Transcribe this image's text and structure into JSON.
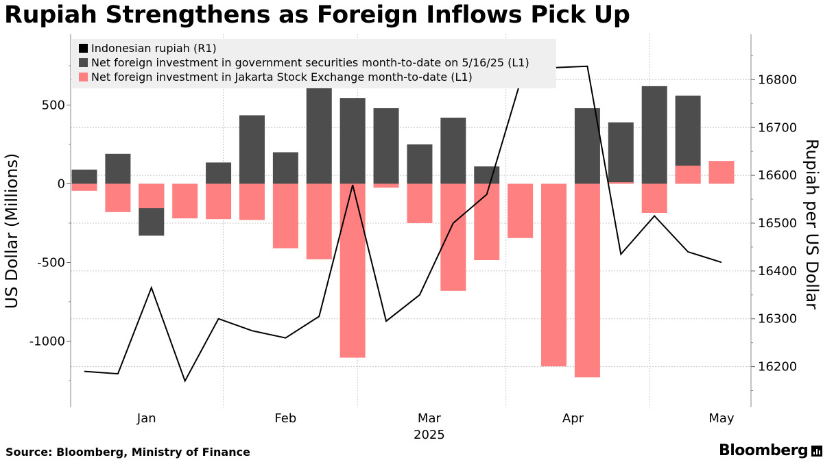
{
  "title": "Rupiah Strengthens as Foreign Inflows Pick Up",
  "source": "Source: Bloomberg, Ministry of Finance",
  "brand": "Bloomberg",
  "colors": {
    "rupiah": "#000000",
    "securities": "#4d4d4d",
    "stocks": "#ff8080",
    "legend_bg": "#efefef",
    "grid": "#c8c8c8"
  },
  "legend": [
    {
      "label": "Indonesian rupiah (R1)",
      "color": "#000000"
    },
    {
      "label": "Net foreign investment in government securities month-to-date on 5/16/25 (L1)",
      "color": "#4d4d4d"
    },
    {
      "label": "Net foreign investment in Jakarta Stock Exchange month-to-date (L1)",
      "color": "#ff8080"
    }
  ],
  "chart_data": {
    "type": "bar",
    "x_axis": {
      "tick_labels": [
        "Jan",
        "Feb",
        "Mar",
        "Apr",
        "May"
      ],
      "year_label": "2025"
    },
    "y_left": {
      "label": "US Dollar (Millions)",
      "range": [
        -1420,
        950
      ],
      "ticks": [
        500,
        0,
        -500,
        -1000
      ]
    },
    "y_right": {
      "label": "Rupiah per US Dollar",
      "range": [
        16115,
        16895
      ],
      "ticks": [
        16800,
        16700,
        16600,
        16500,
        16400,
        16300,
        16200
      ]
    },
    "categories": [
      "2025-01-03",
      "2025-01-10",
      "2025-01-17",
      "2025-01-24",
      "2025-01-31",
      "2025-02-07",
      "2025-02-14",
      "2025-02-21",
      "2025-02-28",
      "2025-03-07",
      "2025-03-14",
      "2025-03-21",
      "2025-03-28",
      "2025-04-04",
      "2025-04-11",
      "2025-04-18",
      "2025-04-25",
      "2025-05-02",
      "2025-05-09",
      "2025-05-16"
    ],
    "series": [
      {
        "name": "Net foreign investment in government securities month-to-date on 5/16/25 (L1)",
        "kind": "bar",
        "values": [
          90,
          190,
          -330,
          null,
          135,
          435,
          200,
          780,
          545,
          480,
          250,
          420,
          110,
          null,
          null,
          480,
          390,
          620,
          560,
          null
        ]
      },
      {
        "name": "Net foreign investment in Jakarta Stock Exchange month-to-date (L1)",
        "kind": "bar",
        "values": [
          -45,
          -180,
          -155,
          -220,
          -225,
          -230,
          -410,
          -480,
          -1105,
          -25,
          -250,
          -680,
          -485,
          -345,
          -1160,
          -1230,
          10,
          -185,
          115,
          145
        ]
      },
      {
        "name": "Indonesian rupiah (R1)",
        "kind": "line",
        "values": [
          16190,
          16185,
          16365,
          16170,
          16300,
          16275,
          16260,
          16305,
          16580,
          16295,
          16350,
          16500,
          16560,
          16795,
          16825,
          16828,
          16435,
          16515,
          16440,
          16418
        ]
      }
    ],
    "grid": true,
    "legend_position": "top-left"
  }
}
